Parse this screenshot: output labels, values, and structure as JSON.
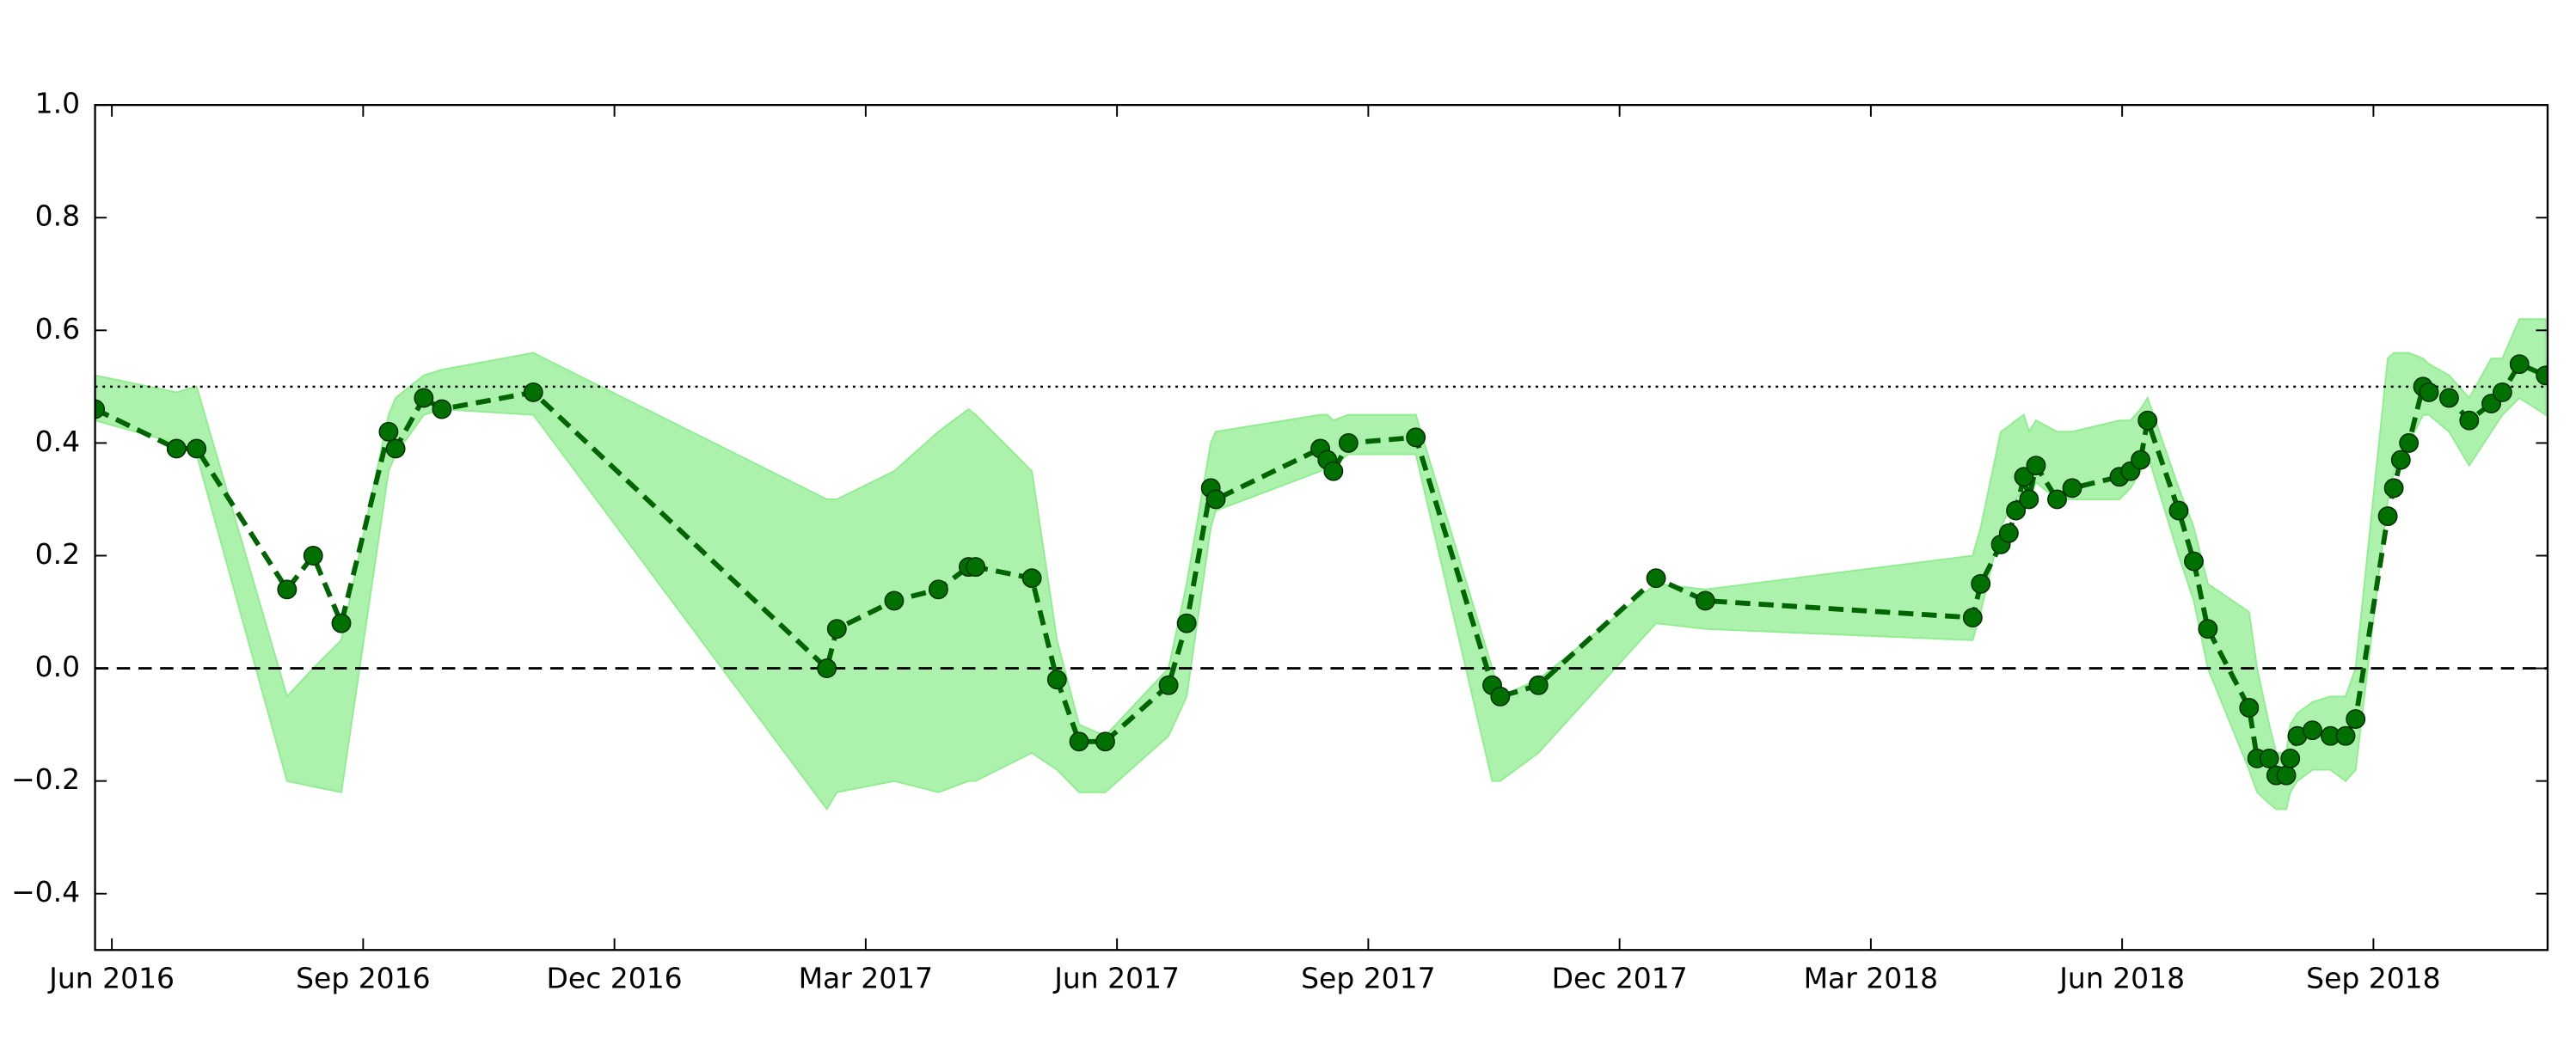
{
  "chart_data": {
    "type": "line",
    "x": [
      2016.4,
      2016.481,
      2016.501,
      2016.591,
      2016.617,
      2016.645,
      2016.692,
      2016.699,
      2016.727,
      2016.745,
      2016.836,
      2017.128,
      2017.138,
      2017.195,
      2017.239,
      2017.269,
      2017.276,
      2017.332,
      2017.357,
      2017.379,
      2017.405,
      2017.468,
      2017.486,
      2017.51,
      2017.515,
      2017.619,
      2017.626,
      2017.632,
      2017.647,
      2017.714,
      2017.79,
      2017.798,
      2017.836,
      2017.953,
      2018.002,
      2018.268,
      2018.276,
      2018.296,
      2018.304,
      2018.311,
      2018.319,
      2018.324,
      2018.331,
      2018.352,
      2018.367,
      2018.414,
      2018.425,
      2018.435,
      2018.442,
      2018.473,
      2018.488,
      2018.502,
      2018.543,
      2018.551,
      2018.563,
      2018.57,
      2018.58,
      2018.584,
      2018.591,
      2018.606,
      2018.624,
      2018.639,
      2018.649,
      2018.681,
      2018.687,
      2018.694,
      2018.702,
      2018.716,
      2018.722,
      2018.742,
      2018.762,
      2018.784,
      2018.795,
      2018.812,
      2018.838
    ],
    "values": [
      0.46,
      0.39,
      0.39,
      0.14,
      0.2,
      0.08,
      0.42,
      0.39,
      0.48,
      0.46,
      0.49,
      0.0,
      0.07,
      0.12,
      0.14,
      0.18,
      0.18,
      0.16,
      -0.02,
      -0.13,
      -0.13,
      -0.03,
      0.08,
      0.32,
      0.3,
      0.39,
      0.37,
      0.35,
      0.4,
      0.41,
      -0.03,
      -0.05,
      -0.03,
      0.16,
      0.12,
      0.09,
      0.15,
      0.22,
      0.24,
      0.28,
      0.34,
      0.3,
      0.36,
      0.3,
      0.32,
      0.34,
      0.35,
      0.37,
      0.44,
      0.28,
      0.19,
      0.07,
      -0.07,
      -0.16,
      -0.16,
      -0.19,
      -0.19,
      -0.16,
      -0.12,
      -0.11,
      -0.12,
      -0.12,
      -0.09,
      0.27,
      0.32,
      0.37,
      0.4,
      0.5,
      0.49,
      0.48,
      0.44,
      0.47,
      0.49,
      0.54,
      0.52
    ],
    "color": "#006400",
    "marker_color": "#007000",
    "band": {
      "color": "#90ee90",
      "lower": [
        0.44,
        0.4,
        0.38,
        -0.2,
        -0.21,
        -0.22,
        0.35,
        0.38,
        0.45,
        0.46,
        0.45,
        -0.25,
        -0.22,
        -0.2,
        -0.22,
        -0.2,
        -0.2,
        -0.15,
        -0.18,
        -0.22,
        -0.22,
        -0.12,
        -0.05,
        0.25,
        0.28,
        0.35,
        0.36,
        0.36,
        0.38,
        0.38,
        -0.2,
        -0.2,
        -0.15,
        0.08,
        0.07,
        0.05,
        0.1,
        0.25,
        0.28,
        0.3,
        0.32,
        0.3,
        0.33,
        0.3,
        0.3,
        0.3,
        0.32,
        0.35,
        0.38,
        0.2,
        0.12,
        0.0,
        -0.18,
        -0.22,
        -0.24,
        -0.25,
        -0.25,
        -0.22,
        -0.2,
        -0.18,
        -0.18,
        -0.2,
        -0.18,
        0.3,
        0.35,
        0.38,
        0.4,
        0.45,
        0.45,
        0.42,
        0.36,
        0.42,
        0.45,
        0.48,
        0.45
      ],
      "upper": [
        0.52,
        0.49,
        0.5,
        -0.05,
        0.0,
        0.05,
        0.45,
        0.48,
        0.52,
        0.53,
        0.56,
        0.3,
        0.3,
        0.35,
        0.42,
        0.46,
        0.45,
        0.35,
        0.05,
        -0.1,
        -0.12,
        0.0,
        0.15,
        0.4,
        0.42,
        0.45,
        0.45,
        0.44,
        0.45,
        0.45,
        0.0,
        -0.05,
        -0.02,
        0.15,
        0.14,
        0.2,
        0.25,
        0.42,
        0.43,
        0.44,
        0.45,
        0.42,
        0.44,
        0.42,
        0.42,
        0.44,
        0.44,
        0.46,
        0.48,
        0.32,
        0.25,
        0.15,
        0.1,
        0.0,
        -0.1,
        -0.15,
        -0.15,
        -0.1,
        -0.08,
        -0.06,
        -0.05,
        -0.05,
        0.0,
        0.55,
        0.56,
        0.56,
        0.56,
        0.55,
        0.54,
        0.52,
        0.48,
        0.55,
        0.55,
        0.62,
        0.62
      ]
    },
    "hlines": [
      {
        "value": 0.5,
        "style": "dotted"
      },
      {
        "value": 0,
        "style": "dashed"
      }
    ],
    "xlim": [
      2016.4,
      2018.84
    ],
    "ylim": [
      -0.5,
      1.0
    ],
    "xticks": [
      {
        "value": 2016.4167,
        "label": "Jun 2016"
      },
      {
        "value": 2016.6667,
        "label": "Sep 2016"
      },
      {
        "value": 2016.9167,
        "label": "Dec 2016"
      },
      {
        "value": 2017.1667,
        "label": "Mar 2017"
      },
      {
        "value": 2017.4167,
        "label": "Jun 2017"
      },
      {
        "value": 2017.6667,
        "label": "Sep 2017"
      },
      {
        "value": 2017.9167,
        "label": "Dec 2017"
      },
      {
        "value": 2018.1667,
        "label": "Mar 2018"
      },
      {
        "value": 2018.4167,
        "label": "Jun 2018"
      },
      {
        "value": 2018.6667,
        "label": "Sep 2018"
      }
    ],
    "yticks": [
      {
        "value": -0.4,
        "label": "−0.4"
      },
      {
        "value": -0.2,
        "label": "−0.2"
      },
      {
        "value": 0,
        "label": "0.0"
      },
      {
        "value": 0.2,
        "label": "0.2"
      },
      {
        "value": 0.4,
        "label": "0.4"
      },
      {
        "value": 0.6,
        "label": "0.6"
      },
      {
        "value": 0.8,
        "label": "0.8"
      },
      {
        "value": 1.0,
        "label": "1.0"
      }
    ]
  }
}
